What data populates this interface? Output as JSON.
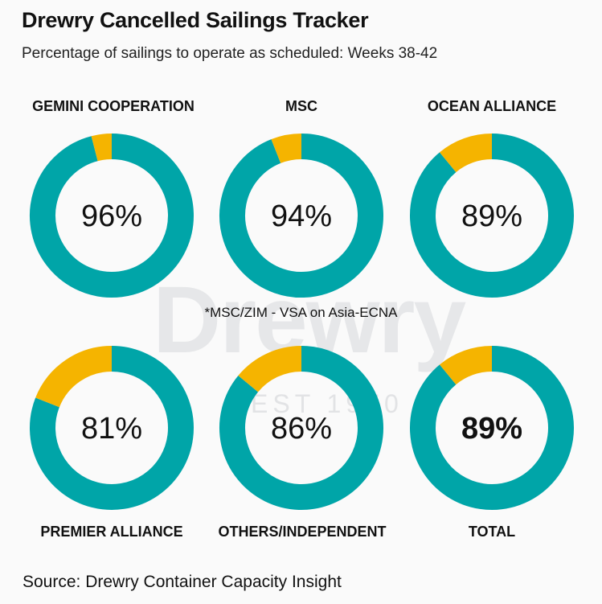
{
  "title": "Drewry Cancelled Sailings Tracker",
  "subtitle": "Percentage of sailings to operate as scheduled: Weeks 38-42",
  "watermark": {
    "brand": "Drewry",
    "established": "EST 1970"
  },
  "footnote": "*MSC/ZIM - VSA on Asia-ECNA",
  "source": "Source: Drewry Container Capacity Insight",
  "colors": {
    "scheduled": "#00a5a8",
    "cancelled": "#f5b400",
    "background": "#fafafa"
  },
  "chart_data": {
    "type": "pie",
    "title": "Drewry Cancelled Sailings Tracker",
    "subtitle": "Percentage of sailings to operate as scheduled: Weeks 38-42",
    "unit": "%",
    "donuts": [
      {
        "name": "GEMINI COOPERATION",
        "value": 96,
        "label": "96%",
        "bold": false
      },
      {
        "name": "MSC",
        "value": 94,
        "label": "94%",
        "bold": false
      },
      {
        "name": "OCEAN ALLIANCE",
        "value": 89,
        "label": "89%",
        "bold": false
      },
      {
        "name": "PREMIER ALLIANCE",
        "value": 81,
        "label": "81%",
        "bold": false
      },
      {
        "name": "OTHERS/INDEPENDENT",
        "value": 86,
        "label": "86%",
        "bold": false
      },
      {
        "name": "TOTAL",
        "value": 89,
        "label": "89%",
        "bold": true
      }
    ]
  }
}
